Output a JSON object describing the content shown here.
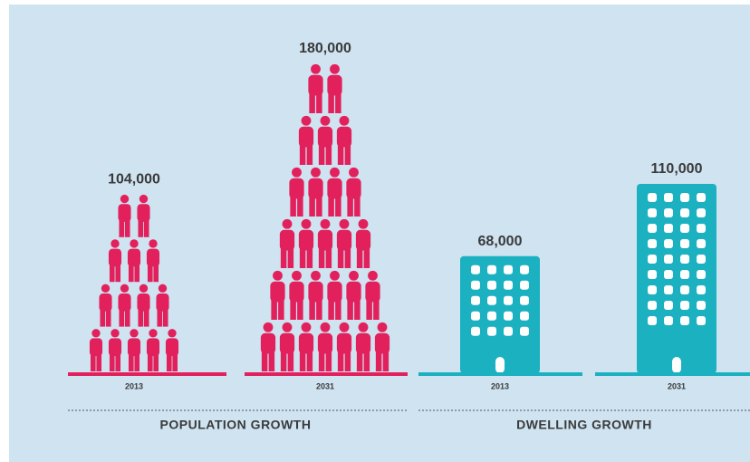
{
  "chart_data": [
    {
      "type": "pictograph",
      "title": "POPULATION GROWTH",
      "icon": "person",
      "categories": [
        "2013",
        "2031"
      ],
      "values": [
        104000,
        180000
      ],
      "value_labels": [
        "104,000",
        "180,000"
      ],
      "color": "#e2215c"
    },
    {
      "type": "pictograph",
      "title": "DWELLING GROWTH",
      "icon": "building",
      "categories": [
        "2013",
        "2031"
      ],
      "values": [
        68000,
        110000
      ],
      "value_labels": [
        "68,000",
        "110,000"
      ],
      "color": "#1bb1c1"
    }
  ]
}
